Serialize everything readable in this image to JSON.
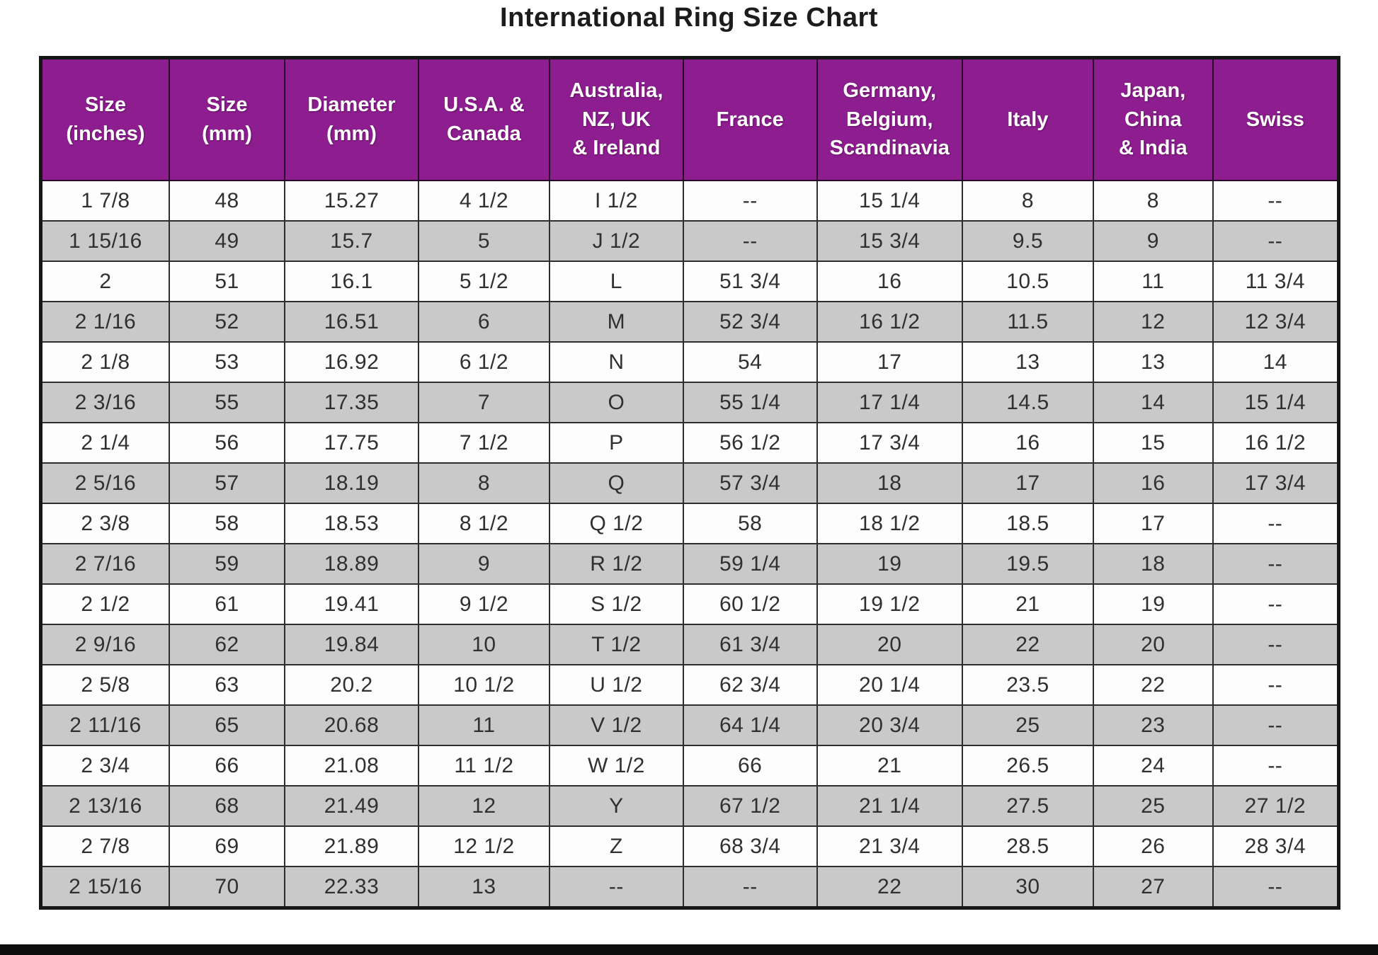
{
  "title": "International Ring Size Chart",
  "colors": {
    "header_bg": "#8e1e90",
    "header_text": "#ffffff",
    "row_bg": "#fdfdfd",
    "row_alt_bg": "#c9c9c9",
    "border": "#161616",
    "title_text": "#1c1c1c"
  },
  "chart_data": {
    "type": "table",
    "title": "International Ring Size Chart",
    "columns": [
      "Size\n(inches)",
      "Size\n(mm)",
      "Diameter\n(mm)",
      "U.S.A. &\nCanada",
      "Australia,\nNZ, UK\n& Ireland",
      "France",
      "Germany,\nBelgium,\nScandinavia",
      "Italy",
      "Japan,\nChina\n& India",
      "Swiss"
    ],
    "rows": [
      [
        "1 7/8",
        "48",
        "15.27",
        "4 1/2",
        "I 1/2",
        "--",
        "15 1/4",
        "8",
        "8",
        "--"
      ],
      [
        "1 15/16",
        "49",
        "15.7",
        "5",
        "J 1/2",
        "--",
        "15 3/4",
        "9.5",
        "9",
        "--"
      ],
      [
        "2",
        "51",
        "16.1",
        "5 1/2",
        "L",
        "51 3/4",
        "16",
        "10.5",
        "11",
        "11 3/4"
      ],
      [
        "2 1/16",
        "52",
        "16.51",
        "6",
        "M",
        "52 3/4",
        "16 1/2",
        "11.5",
        "12",
        "12 3/4"
      ],
      [
        "2 1/8",
        "53",
        "16.92",
        "6 1/2",
        "N",
        "54",
        "17",
        "13",
        "13",
        "14"
      ],
      [
        "2 3/16",
        "55",
        "17.35",
        "7",
        "O",
        "55 1/4",
        "17 1/4",
        "14.5",
        "14",
        "15 1/4"
      ],
      [
        "2 1/4",
        "56",
        "17.75",
        "7 1/2",
        "P",
        "56 1/2",
        "17 3/4",
        "16",
        "15",
        "16 1/2"
      ],
      [
        "2 5/16",
        "57",
        "18.19",
        "8",
        "Q",
        "57 3/4",
        "18",
        "17",
        "16",
        "17 3/4"
      ],
      [
        "2 3/8",
        "58",
        "18.53",
        "8 1/2",
        "Q 1/2",
        "58",
        "18 1/2",
        "18.5",
        "17",
        "--"
      ],
      [
        "2 7/16",
        "59",
        "18.89",
        "9",
        "R 1/2",
        "59 1/4",
        "19",
        "19.5",
        "18",
        "--"
      ],
      [
        "2 1/2",
        "61",
        "19.41",
        "9 1/2",
        "S 1/2",
        "60 1/2",
        "19 1/2",
        "21",
        "19",
        "--"
      ],
      [
        "2 9/16",
        "62",
        "19.84",
        "10",
        "T 1/2",
        "61 3/4",
        "20",
        "22",
        "20",
        "--"
      ],
      [
        "2 5/8",
        "63",
        "20.2",
        "10 1/2",
        "U 1/2",
        "62 3/4",
        "20 1/4",
        "23.5",
        "22",
        "--"
      ],
      [
        "2 11/16",
        "65",
        "20.68",
        "11",
        "V 1/2",
        "64 1/4",
        "20 3/4",
        "25",
        "23",
        "--"
      ],
      [
        "2 3/4",
        "66",
        "21.08",
        "11 1/2",
        "W 1/2",
        "66",
        "21",
        "26.5",
        "24",
        "--"
      ],
      [
        "2 13/16",
        "68",
        "21.49",
        "12",
        "Y",
        "67 1/2",
        "21 1/4",
        "27.5",
        "25",
        "27 1/2"
      ],
      [
        "2 7/8",
        "69",
        "21.89",
        "12 1/2",
        "Z",
        "68 3/4",
        "21 3/4",
        "28.5",
        "26",
        "28 3/4"
      ],
      [
        "2 15/16",
        "70",
        "22.33",
        "13",
        "--",
        "--",
        "22",
        "30",
        "27",
        "--"
      ]
    ],
    "layout": {
      "striped": true,
      "stripe_pattern": "odd-white-even-gray",
      "header_style": "purple-banner",
      "grid": true
    }
  }
}
